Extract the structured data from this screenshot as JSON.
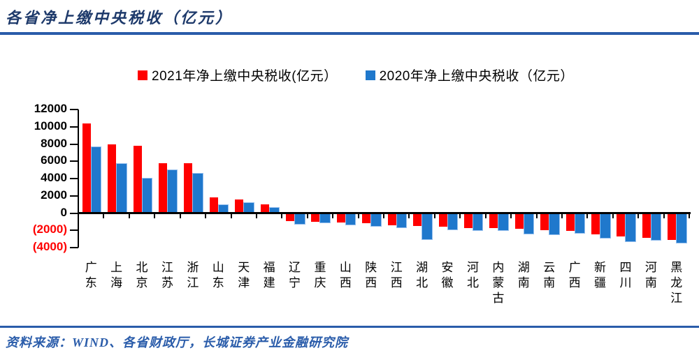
{
  "title": "各省净上缴中央税收（亿元）",
  "source": "资料来源：WIND、各省财政厅，长城证券产业金融研究院",
  "colors": {
    "accent_rule": "#2A5CAA",
    "title_text": "#1E3A6B",
    "series_2021": "#FF0000",
    "series_2020": "#1F78CC",
    "negative_tick_label": "#FF0000",
    "axis": "#000000"
  },
  "chart_data": {
    "type": "bar",
    "title": "各省净上缴中央税收（亿元）",
    "categories": [
      "广东",
      "上海",
      "北京",
      "江苏",
      "浙江",
      "山东",
      "天津",
      "福建",
      "辽宁",
      "重庆",
      "山西",
      "陕西",
      "江西",
      "湖北",
      "安徽",
      "河北",
      "内蒙古",
      "湖南",
      "云南",
      "广西",
      "新疆",
      "四川",
      "河南",
      "黑龙江"
    ],
    "series": [
      {
        "name": "2021年净上缴中央税收(亿元）",
        "color": "#FF0000",
        "values": [
          10400,
          8000,
          7800,
          5750,
          5750,
          1800,
          1550,
          1000,
          -900,
          -1000,
          -1100,
          -1200,
          -1450,
          -1500,
          -1600,
          -1700,
          -1750,
          -1850,
          -1950,
          -2050,
          -2450,
          -2700,
          -2850,
          -3100
        ]
      },
      {
        "name": "2020年净上缴中央税收（亿元）",
        "color": "#1F78CC",
        "values": [
          7600,
          5700,
          4000,
          4950,
          4600,
          900,
          1150,
          620,
          -1250,
          -1100,
          -1350,
          -1500,
          -1650,
          -3000,
          -1900,
          -2000,
          -1950,
          -2350,
          -2450,
          -2300,
          -2850,
          -3300,
          -3100,
          -3400
        ]
      }
    ],
    "xlabel": "",
    "ylabel": "",
    "ylim": [
      -4000,
      12000
    ],
    "y_ticks": [
      12000,
      10000,
      8000,
      6000,
      4000,
      2000,
      0,
      -2000,
      -4000
    ],
    "y_tick_labels": [
      "12000",
      "10000",
      "8000",
      "6000",
      "4000",
      "2000",
      "0",
      "(2000)",
      "(4000)"
    ],
    "grid": false,
    "legend_position": "top"
  }
}
